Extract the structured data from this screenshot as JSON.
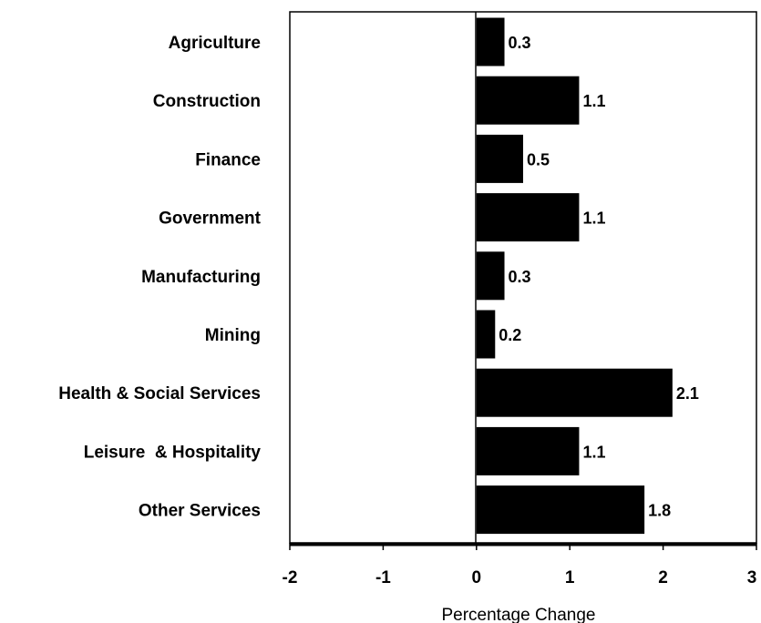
{
  "chart_data": {
    "type": "bar",
    "orientation": "horizontal",
    "categories": [
      "Agriculture",
      "Construction",
      "Finance",
      "Government",
      "Manufacturing",
      "Mining",
      "Health & Social Services",
      "Leisure  & Hospitality",
      "Other Services"
    ],
    "values": [
      0.3,
      1.1,
      0.5,
      1.1,
      0.3,
      0.2,
      2.1,
      1.1,
      1.8
    ],
    "data_labels": [
      "0.3",
      "1.1",
      "0.5",
      "1.1",
      "0.3",
      "0.2",
      "2.1",
      "1.1",
      "1.8"
    ],
    "xlabel": "Percentage Change",
    "ylabel": "",
    "xlim": [
      -2,
      3
    ],
    "x_ticks": [
      -2,
      -1,
      0,
      1,
      2,
      3
    ],
    "x_tick_labels": [
      "-2",
      "-1",
      "0",
      "1",
      "2",
      "3"
    ],
    "grid": false,
    "legend": false,
    "bar_color": "#000000",
    "axis_color": "#000000"
  }
}
